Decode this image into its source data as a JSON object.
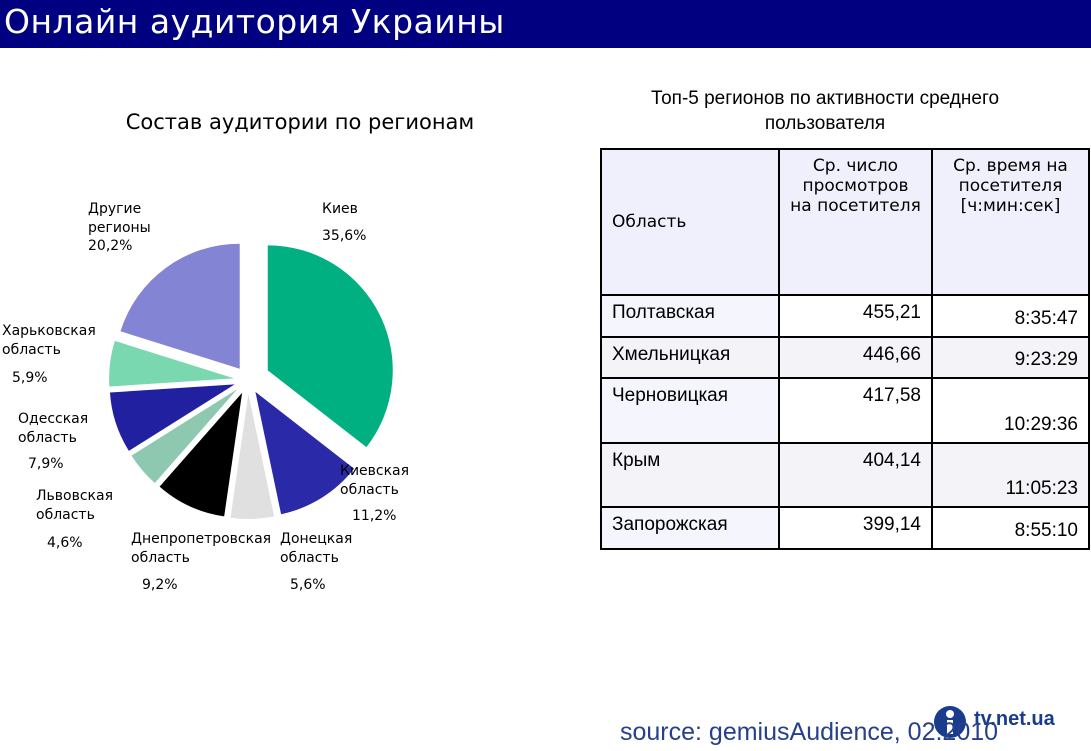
{
  "header": {
    "title": "Онлайн аудитория Украины"
  },
  "chart_data": {
    "type": "pie",
    "title": "Состав аудитории по регионам",
    "categories": [
      "Киев",
      "Киевская область",
      "Донецкая область",
      "Днепропетровская область",
      "Львовская область",
      "Одесская область",
      "Харьковская область",
      "Другие регионы"
    ],
    "values": [
      35.6,
      11.2,
      5.6,
      9.2,
      4.6,
      7.9,
      5.9,
      20.2
    ],
    "value_labels": [
      "35,6%",
      "11,2%",
      "5,6%",
      "9,2%",
      "4,6%",
      "7,9%",
      "5,9%",
      "20,2%"
    ],
    "colors": [
      "#00b080",
      "#2a2aa8",
      "#e0e0e0",
      "#000000",
      "#8fc8b0",
      "#2020a0",
      "#7ad8b0",
      "#8484d4"
    ]
  },
  "table": {
    "title": "Топ-5 регионов по активности среднего пользователя",
    "header": [
      "Область",
      "Ср. число просмотров на посетителя",
      "Ср. время на посетителя [ч:мин:сек]"
    ],
    "rows": [
      [
        "Полтавская",
        "455,21",
        "8:35:47"
      ],
      [
        "Хмельницкая",
        "446,66",
        "9:23:29"
      ],
      [
        "Черновицкая",
        "417,58",
        "10:29:36"
      ],
      [
        "Крым",
        "404,14",
        "11:05:23"
      ],
      [
        "Запорожская",
        "399,14",
        "8:55:10"
      ]
    ]
  },
  "footer": {
    "source": "source: gemiusAudience, 02.2010",
    "logo": "tv.net.ua"
  }
}
